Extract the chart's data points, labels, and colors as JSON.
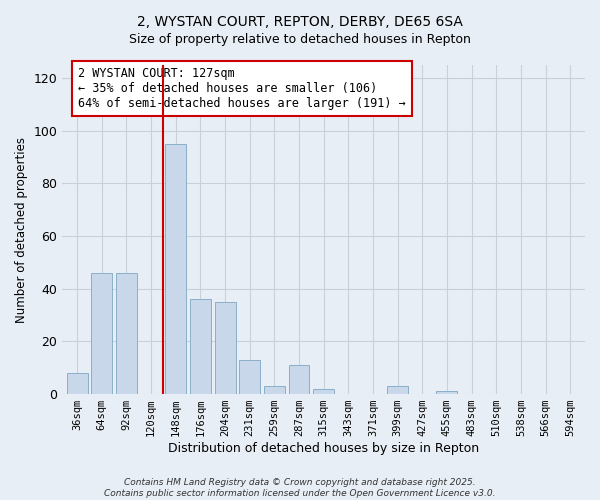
{
  "title": "2, WYSTAN COURT, REPTON, DERBY, DE65 6SA",
  "subtitle": "Size of property relative to detached houses in Repton",
  "xlabel": "Distribution of detached houses by size in Repton",
  "ylabel": "Number of detached properties",
  "categories": [
    "36sqm",
    "64sqm",
    "92sqm",
    "120sqm",
    "148sqm",
    "176sqm",
    "204sqm",
    "231sqm",
    "259sqm",
    "287sqm",
    "315sqm",
    "343sqm",
    "371sqm",
    "399sqm",
    "427sqm",
    "455sqm",
    "483sqm",
    "510sqm",
    "538sqm",
    "566sqm",
    "594sqm"
  ],
  "values": [
    8,
    46,
    46,
    0,
    95,
    36,
    35,
    13,
    3,
    11,
    2,
    0,
    0,
    3,
    0,
    1,
    0,
    0,
    0,
    0,
    0
  ],
  "bar_color": "#c8d8ea",
  "bar_edge_color": "#8aafc8",
  "property_line_x": 3.5,
  "property_line_color": "#cc0000",
  "annotation_line1": "2 WYSTAN COURT: 127sqm",
  "annotation_line2": "← 35% of detached houses are smaller (106)",
  "annotation_line3": "64% of semi-detached houses are larger (191) →",
  "annotation_box_color": "#ffffff",
  "annotation_box_edge": "#cc0000",
  "ylim": [
    0,
    125
  ],
  "yticks": [
    0,
    20,
    40,
    60,
    80,
    100,
    120
  ],
  "grid_color": "#c8d0dc",
  "background_color": "#e8eef5",
  "footer_line1": "Contains HM Land Registry data © Crown copyright and database right 2025.",
  "footer_line2": "Contains public sector information licensed under the Open Government Licence v3.0."
}
